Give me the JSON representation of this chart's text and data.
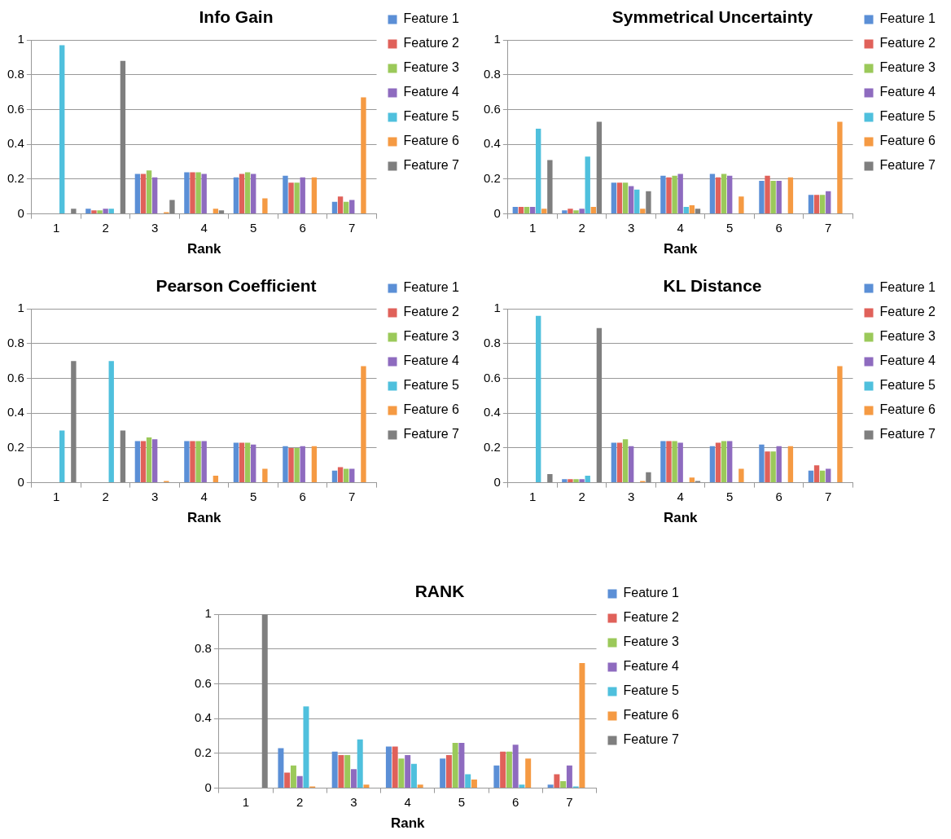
{
  "chart_data": [
    {
      "type": "bar",
      "title": "Info Gain",
      "xlabel": "Rank",
      "categories": [
        "1",
        "2",
        "3",
        "4",
        "5",
        "6",
        "7"
      ],
      "ylim": [
        0,
        1
      ],
      "yticks": [
        0,
        0.2,
        0.4,
        0.6,
        0.8,
        1
      ],
      "grid": "y",
      "legend": "right",
      "series": [
        {
          "name": "Feature 1",
          "color": "#5b8fd6",
          "values": [
            0,
            0.03,
            0.23,
            0.24,
            0.21,
            0.22,
            0.07
          ]
        },
        {
          "name": "Feature 2",
          "color": "#e0615a",
          "values": [
            0,
            0.02,
            0.23,
            0.24,
            0.23,
            0.18,
            0.1
          ]
        },
        {
          "name": "Feature 3",
          "color": "#9bc95a",
          "values": [
            0,
            0.02,
            0.25,
            0.24,
            0.24,
            0.18,
            0.07
          ]
        },
        {
          "name": "Feature 4",
          "color": "#8e6bbf",
          "values": [
            0,
            0.03,
            0.21,
            0.23,
            0.23,
            0.21,
            0.08
          ]
        },
        {
          "name": "Feature 5",
          "color": "#4fc0dd",
          "values": [
            0.97,
            0.03,
            0,
            0,
            0,
            0,
            0
          ]
        },
        {
          "name": "Feature 6",
          "color": "#f59a43",
          "values": [
            0,
            0,
            0.01,
            0.03,
            0.09,
            0.21,
            0.67
          ]
        },
        {
          "name": "Feature 7",
          "color": "#7f7f7f",
          "values": [
            0.03,
            0.88,
            0.08,
            0.02,
            0,
            0,
            0
          ]
        }
      ]
    },
    {
      "type": "bar",
      "title": "Symmetrical Uncertainty",
      "xlabel": "Rank",
      "categories": [
        "1",
        "2",
        "3",
        "4",
        "5",
        "6",
        "7"
      ],
      "ylim": [
        0,
        1
      ],
      "yticks": [
        0,
        0.2,
        0.4,
        0.6,
        0.8,
        1
      ],
      "grid": "y",
      "legend": "right",
      "series": [
        {
          "name": "Feature 1",
          "color": "#5b8fd6",
          "values": [
            0.04,
            0.02,
            0.18,
            0.22,
            0.23,
            0.19,
            0.11
          ]
        },
        {
          "name": "Feature 2",
          "color": "#e0615a",
          "values": [
            0.04,
            0.03,
            0.18,
            0.21,
            0.21,
            0.22,
            0.11
          ]
        },
        {
          "name": "Feature 3",
          "color": "#9bc95a",
          "values": [
            0.04,
            0.02,
            0.18,
            0.22,
            0.23,
            0.19,
            0.11
          ]
        },
        {
          "name": "Feature 4",
          "color": "#8e6bbf",
          "values": [
            0.04,
            0.03,
            0.16,
            0.23,
            0.22,
            0.19,
            0.13
          ]
        },
        {
          "name": "Feature 5",
          "color": "#4fc0dd",
          "values": [
            0.49,
            0.33,
            0.14,
            0.04,
            0,
            0,
            0
          ]
        },
        {
          "name": "Feature 6",
          "color": "#f59a43",
          "values": [
            0.03,
            0.04,
            0.03,
            0.05,
            0.1,
            0.21,
            0.53
          ]
        },
        {
          "name": "Feature 7",
          "color": "#7f7f7f",
          "values": [
            0.31,
            0.53,
            0.13,
            0.03,
            0,
            0,
            0
          ]
        }
      ]
    },
    {
      "type": "bar",
      "title": "Pearson Coefficient",
      "xlabel": "Rank",
      "categories": [
        "1",
        "2",
        "3",
        "4",
        "5",
        "6",
        "7"
      ],
      "ylim": [
        0,
        1
      ],
      "yticks": [
        0,
        0.2,
        0.4,
        0.6,
        0.8,
        1
      ],
      "grid": "y",
      "legend": "right",
      "series": [
        {
          "name": "Feature 1",
          "color": "#5b8fd6",
          "values": [
            0,
            0,
            0.24,
            0.24,
            0.23,
            0.21,
            0.07
          ]
        },
        {
          "name": "Feature 2",
          "color": "#e0615a",
          "values": [
            0,
            0,
            0.24,
            0.24,
            0.23,
            0.2,
            0.09
          ]
        },
        {
          "name": "Feature 3",
          "color": "#9bc95a",
          "values": [
            0,
            0,
            0.26,
            0.24,
            0.23,
            0.2,
            0.08
          ]
        },
        {
          "name": "Feature 4",
          "color": "#8e6bbf",
          "values": [
            0,
            0,
            0.25,
            0.24,
            0.22,
            0.21,
            0.08
          ]
        },
        {
          "name": "Feature 5",
          "color": "#4fc0dd",
          "values": [
            0.3,
            0.7,
            0,
            0,
            0,
            0,
            0
          ]
        },
        {
          "name": "Feature 6",
          "color": "#f59a43",
          "values": [
            0,
            0,
            0.01,
            0.04,
            0.08,
            0.21,
            0.67
          ]
        },
        {
          "name": "Feature 7",
          "color": "#7f7f7f",
          "values": [
            0.7,
            0.3,
            0,
            0,
            0,
            0,
            0
          ]
        }
      ]
    },
    {
      "type": "bar",
      "title": "KL Distance",
      "xlabel": "Rank",
      "categories": [
        "1",
        "2",
        "3",
        "4",
        "5",
        "6",
        "7"
      ],
      "ylim": [
        0,
        1
      ],
      "yticks": [
        0,
        0.2,
        0.4,
        0.6,
        0.8,
        1
      ],
      "grid": "y",
      "legend": "right",
      "series": [
        {
          "name": "Feature 1",
          "color": "#5b8fd6",
          "values": [
            0,
            0.02,
            0.23,
            0.24,
            0.21,
            0.22,
            0.07
          ]
        },
        {
          "name": "Feature 2",
          "color": "#e0615a",
          "values": [
            0,
            0.02,
            0.23,
            0.24,
            0.23,
            0.18,
            0.1
          ]
        },
        {
          "name": "Feature 3",
          "color": "#9bc95a",
          "values": [
            0,
            0.02,
            0.25,
            0.24,
            0.24,
            0.18,
            0.07
          ]
        },
        {
          "name": "Feature 4",
          "color": "#8e6bbf",
          "values": [
            0,
            0.02,
            0.21,
            0.23,
            0.24,
            0.21,
            0.08
          ]
        },
        {
          "name": "Feature 5",
          "color": "#4fc0dd",
          "values": [
            0.96,
            0.04,
            0,
            0,
            0,
            0,
            0
          ]
        },
        {
          "name": "Feature 6",
          "color": "#f59a43",
          "values": [
            0,
            0,
            0.01,
            0.03,
            0.08,
            0.21,
            0.67
          ]
        },
        {
          "name": "Feature 7",
          "color": "#7f7f7f",
          "values": [
            0.05,
            0.89,
            0.06,
            0.01,
            0,
            0,
            0
          ]
        }
      ]
    },
    {
      "type": "bar",
      "title": "RANK",
      "xlabel": "Rank",
      "categories": [
        "1",
        "2",
        "3",
        "4",
        "5",
        "6",
        "7"
      ],
      "ylim": [
        0,
        1
      ],
      "yticks": [
        0,
        0.2,
        0.4,
        0.6,
        0.8,
        1
      ],
      "grid": "y",
      "legend": "right",
      "series": [
        {
          "name": "Feature 1",
          "color": "#5b8fd6",
          "values": [
            0,
            0.23,
            0.21,
            0.24,
            0.17,
            0.13,
            0.02
          ]
        },
        {
          "name": "Feature 2",
          "color": "#e0615a",
          "values": [
            0,
            0.09,
            0.19,
            0.24,
            0.19,
            0.21,
            0.08
          ]
        },
        {
          "name": "Feature 3",
          "color": "#9bc95a",
          "values": [
            0,
            0.13,
            0.19,
            0.17,
            0.26,
            0.21,
            0.04
          ]
        },
        {
          "name": "Feature 4",
          "color": "#8e6bbf",
          "values": [
            0,
            0.07,
            0.11,
            0.19,
            0.26,
            0.25,
            0.13
          ]
        },
        {
          "name": "Feature 5",
          "color": "#4fc0dd",
          "values": [
            0,
            0.47,
            0.28,
            0.14,
            0.08,
            0.02,
            0.01
          ]
        },
        {
          "name": "Feature 6",
          "color": "#f59a43",
          "values": [
            0,
            0.01,
            0.02,
            0.02,
            0.05,
            0.17,
            0.72
          ]
        },
        {
          "name": "Feature 7",
          "color": "#7f7f7f",
          "values": [
            1,
            0,
            0,
            0,
            0,
            0,
            0
          ]
        }
      ]
    }
  ]
}
